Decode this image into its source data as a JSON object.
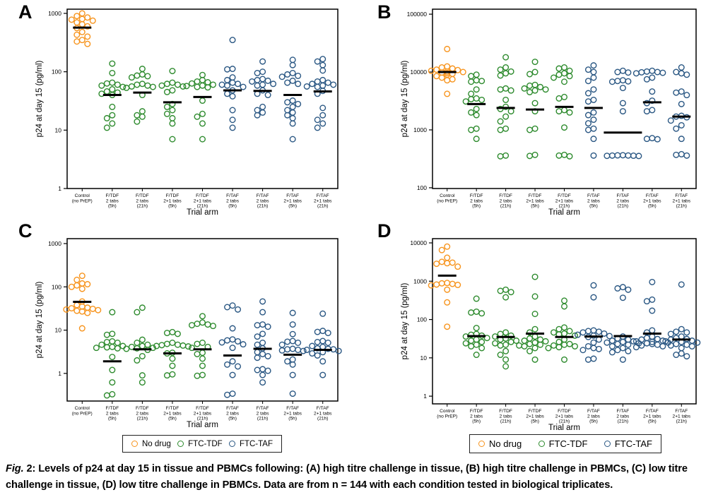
{
  "caption": {
    "label": "Fig.",
    "text": " 2: Levels of p24 at day 15 in tissue and PBMCs following: (A) high titre challenge in tissue, (B) high titre challenge in PBMCs, (C) low titre challenge in tissue, (D) low titre challenge in PBMCs. Data are from n = 144 with each condition tested in biological triplicates."
  },
  "series_colors": {
    "No drug": "#F7941D",
    "FTC-TDF": "#2E8B2E",
    "FTC-TAF": "#2A5783"
  },
  "legend": {
    "entries": [
      {
        "label": "No drug",
        "series": "No drug"
      },
      {
        "label": "FTC-TDF",
        "series": "FTC-TDF"
      },
      {
        "label": "FTC-TAF",
        "series": "FTC-TAF"
      }
    ]
  },
  "axes": {
    "xlabel": "Trial arm",
    "ylabel": "p24 at day 15 (pg/ml)"
  },
  "arms": [
    {
      "lines": [
        "Control",
        "(no PrEP)"
      ]
    },
    {
      "lines": [
        "F/TDF",
        "2 tabs",
        "(5h)"
      ]
    },
    {
      "lines": [
        "F/TDF",
        "2 tabs",
        "(21h)"
      ]
    },
    {
      "lines": [
        "F/TDF",
        "2+1 tabs",
        "(5h)"
      ]
    },
    {
      "lines": [
        "F/TDF",
        "2+1 tabs",
        "(21h)"
      ]
    },
    {
      "lines": [
        "F/TAF",
        "2 tabs",
        "(5h)"
      ]
    },
    {
      "lines": [
        "F/TAF",
        "2 tabs",
        "(21h)"
      ]
    },
    {
      "lines": [
        "F/TAF",
        "2+1 tabs",
        "(5h)"
      ]
    },
    {
      "lines": [
        "F/TAF",
        "2+1 tabs",
        "(21h)"
      ]
    }
  ],
  "chart_data": [
    {
      "panel": "A",
      "type": "scatter",
      "subtitle": "high titre challenge in tissue",
      "yscale": "log",
      "yticks": [
        1,
        10,
        100,
        1000
      ],
      "ylim": [
        1,
        1180
      ],
      "groups": [
        {
          "arm": "Control (no PrEP)",
          "series": "No drug",
          "median": 570,
          "values": [
            1000,
            900,
            850,
            800,
            780,
            750,
            700,
            650,
            600,
            560,
            480,
            430,
            400,
            350,
            330,
            300
          ]
        },
        {
          "arm": "F/TDF 2 tabs (5h)",
          "series": "FTC-TDF",
          "median": 40,
          "values": [
            138,
            95,
            65,
            63,
            60,
            58,
            55,
            50,
            46,
            44,
            42,
            40,
            25,
            18,
            16,
            13,
            11
          ]
        },
        {
          "arm": "F/TDF 2 tabs (21h)",
          "series": "FTC-TDF",
          "median": 44,
          "values": [
            112,
            90,
            86,
            84,
            80,
            62,
            60,
            58,
            56,
            55,
            53,
            40,
            21,
            18,
            17,
            14
          ]
        },
        {
          "arm": "F/TDF 2+1 tabs (5h)",
          "series": "FTC-TDF",
          "median": 30,
          "values": [
            103,
            65,
            62,
            60,
            58,
            56,
            48,
            45,
            28,
            25,
            22,
            19,
            16,
            13,
            7
          ]
        },
        {
          "arm": "F/TDF 2+1 tabs (21h)",
          "series": "FTC-TDF",
          "median": 37,
          "values": [
            88,
            72,
            68,
            66,
            63,
            60,
            58,
            57,
            55,
            54,
            32,
            19,
            17,
            13,
            7
          ]
        },
        {
          "arm": "F/TAF 2 tabs (5h)",
          "series": "FTC-TAF",
          "median": 48,
          "values": [
            350,
            112,
            110,
            80,
            72,
            65,
            62,
            60,
            58,
            55,
            48,
            42,
            38,
            22,
            15,
            11
          ]
        },
        {
          "arm": "F/TAF 2 tabs (21h)",
          "series": "FTC-TAF",
          "median": 47,
          "values": [
            150,
            100,
            95,
            75,
            72,
            70,
            68,
            62,
            60,
            58,
            48,
            42,
            40,
            25,
            22,
            20,
            18
          ]
        },
        {
          "arm": "F/TAF 2+1 tabs (5h)",
          "series": "FTC-TAF",
          "median": 40,
          "values": [
            160,
            130,
            95,
            90,
            85,
            82,
            70,
            65,
            62,
            32,
            30,
            28,
            25,
            22,
            20,
            18,
            16,
            13,
            7
          ]
        },
        {
          "arm": "F/TAF 2+1 tabs (21h)",
          "series": "FTC-TAF",
          "median": 46,
          "values": [
            165,
            150,
            130,
            105,
            72,
            68,
            65,
            62,
            60,
            58,
            56,
            55,
            47,
            42,
            24,
            18,
            15,
            13,
            11
          ]
        }
      ]
    },
    {
      "panel": "B",
      "type": "scatter",
      "subtitle": "high titre challenge in PBMCs",
      "yscale": "log",
      "yticks": [
        100,
        1000,
        10000,
        100000
      ],
      "ylim": [
        97,
        122000
      ],
      "groups": [
        {
          "arm": "Control (no PrEP)",
          "series": "No drug",
          "median": 10000,
          "values": [
            25000,
            12500,
            12000,
            11500,
            11000,
            10800,
            10500,
            10200,
            10000,
            9800,
            9600,
            9300,
            9000,
            8500,
            8000,
            7500,
            7200,
            4200
          ]
        },
        {
          "arm": "F/TDF 2 tabs (5h)",
          "series": "FTC-TDF",
          "median": 2800,
          "values": [
            9000,
            8500,
            7200,
            7000,
            6800,
            5000,
            4200,
            3500,
            3400,
            3300,
            3100,
            2300,
            2000,
            1800,
            1050,
            1000,
            700
          ]
        },
        {
          "arm": "F/TDF 2 tabs (21h)",
          "series": "FTC-TDF",
          "median": 2400,
          "values": [
            18000,
            12000,
            11000,
            10200,
            9500,
            8700,
            5200,
            5000,
            4800,
            3300,
            2500,
            2300,
            2100,
            1700,
            1400,
            1050,
            1000,
            360,
            350
          ]
        },
        {
          "arm": "F/TDF 2+1 tabs (5h)",
          "series": "FTC-TDF",
          "median": 2250,
          "values": [
            15000,
            10000,
            9200,
            6000,
            5800,
            5500,
            5200,
            5000,
            4800,
            4500,
            2900,
            2100,
            1050,
            1000,
            370,
            355
          ]
        },
        {
          "arm": "F/TDF 2+1 tabs (21h)",
          "series": "FTC-TDF",
          "median": 2500,
          "values": [
            12000,
            11500,
            10500,
            9500,
            9000,
            8500,
            8000,
            6800,
            3700,
            3500,
            2200,
            2100,
            2000,
            1100,
            370,
            360,
            350
          ]
        },
        {
          "arm": "F/TAF 2 tabs (5h)",
          "series": "FTC-TAF",
          "median": 2400,
          "values": [
            13000,
            11000,
            10000,
            8000,
            7000,
            5000,
            4300,
            3300,
            3100,
            2000,
            1800,
            1500,
            1300,
            1050,
            1000,
            700,
            360
          ]
        },
        {
          "arm": "F/TAF 2 tabs (21h)",
          "series": "FTC-TAF",
          "median": 900,
          "median_wide": true,
          "values": [
            10500,
            10000,
            9800,
            7200,
            7000,
            6900,
            6800,
            5300,
            2900,
            2100,
            365,
            363,
            361,
            360,
            358,
            356,
            354
          ]
        },
        {
          "arm": "F/TAF 2+1 tabs (5h)",
          "series": "FTC-TAF",
          "median": 3000,
          "values": [
            10500,
            10200,
            10000,
            9900,
            9700,
            9500,
            8000,
            7500,
            4600,
            3200,
            2900,
            2200,
            2100,
            720,
            700,
            690
          ]
        },
        {
          "arm": "F/TAF 2+1 tabs (21h)",
          "series": "FTC-TAF",
          "median": 1700,
          "values": [
            12000,
            10000,
            9500,
            9000,
            4600,
            4400,
            4000,
            2800,
            1750,
            1700,
            1650,
            1450,
            1200,
            1050,
            700,
            380,
            370,
            360
          ]
        }
      ]
    },
    {
      "panel": "C",
      "type": "scatter",
      "subtitle": "low titre challenge in tissue",
      "yscale": "log",
      "yticks": [
        1,
        10,
        100,
        1000
      ],
      "ylim": [
        0.23,
        1300
      ],
      "groups": [
        {
          "arm": "Control (no PrEP)",
          "series": "No drug",
          "median": 45,
          "values": [
            180,
            145,
            120,
            115,
            108,
            100,
            90,
            46,
            38,
            35,
            33,
            32,
            31,
            30,
            29,
            28,
            27,
            25,
            11
          ]
        },
        {
          "arm": "F/TDF 2 tabs (5h)",
          "series": "FTC-TDF",
          "median": 1.9,
          "values": [
            26,
            8.2,
            7.8,
            5.5,
            5.3,
            5.1,
            4.6,
            4.3,
            4.1,
            4.0,
            3.9,
            3.8,
            2.4,
            1.2,
            0.62,
            0.33,
            0.31
          ]
        },
        {
          "arm": "F/TDF 2 tabs (21h)",
          "series": "FTC-TDF",
          "median": 3.6,
          "values": [
            33,
            26,
            6,
            5.1,
            4.6,
            4.3,
            4.1,
            3.9,
            3.8,
            3.7,
            3.5,
            2.5,
            2.0,
            0.9,
            0.62
          ]
        },
        {
          "arm": "F/TDF 2+1 tabs (5h)",
          "series": "FTC-TDF",
          "median": 2.9,
          "values": [
            9.0,
            8.6,
            8.2,
            5.1,
            4.8,
            4.6,
            4.5,
            4.4,
            4.3,
            4.2,
            3.0,
            2.9,
            2.2,
            1.5,
            0.95,
            0.9
          ]
        },
        {
          "arm": "F/TDF 2+1 tabs (21h)",
          "series": "FTC-TDF",
          "median": 3.6,
          "values": [
            21,
            15,
            14,
            13.5,
            13,
            12.5,
            5.1,
            4.8,
            4.1,
            3.9,
            3.0,
            2.8,
            2.2,
            1.5,
            0.92,
            0.88
          ]
        },
        {
          "arm": "F/TAF 2 tabs (5h)",
          "series": "FTC-TAF",
          "median": 2.6,
          "values": [
            37,
            34,
            30,
            11,
            6.1,
            5.8,
            5.5,
            5.2,
            4.7,
            3.9,
            1.9,
            1.6,
            1.45,
            0.92,
            0.34,
            0.32
          ]
        },
        {
          "arm": "F/TAF 2 tabs (21h)",
          "series": "FTC-TAF",
          "median": 3.7,
          "values": [
            46,
            26,
            13.5,
            13,
            12,
            8.2,
            7.1,
            5.1,
            4.6,
            3.8,
            3.1,
            2.8,
            2.5,
            2.3,
            1.25,
            1.2,
            1.15,
            0.92,
            0.62
          ]
        },
        {
          "arm": "F/TAF 2+1 tabs (5h)",
          "series": "FTC-TAF",
          "median": 2.7,
          "values": [
            25,
            13.5,
            8.1,
            5.6,
            5.4,
            5.1,
            4.6,
            3.7,
            3.6,
            3.5,
            3.4,
            3.3,
            2.1,
            1.9,
            1.6,
            0.92,
            0.34
          ]
        },
        {
          "arm": "F/TAF 2+1 tabs (21h)",
          "series": "FTC-TAF",
          "median": 3.5,
          "values": [
            24,
            9.6,
            9.1,
            8.6,
            5.6,
            5.3,
            5.1,
            4.3,
            4.1,
            3.8,
            3.7,
            3.6,
            3.5,
            3.3,
            3.1,
            2.9,
            2.6,
            1.9,
            0.92
          ]
        }
      ]
    },
    {
      "panel": "D",
      "type": "scatter",
      "subtitle": "low titre challenge in PBMCs",
      "yscale": "log",
      "yticks": [
        1,
        10,
        100,
        1000,
        10000
      ],
      "ylim": [
        0.63,
        12900
      ],
      "groups": [
        {
          "arm": "Control (no PrEP)",
          "series": "No drug",
          "median": 1400,
          "values": [
            8000,
            6500,
            4100,
            3200,
            3050,
            2950,
            2850,
            2400,
            900,
            880,
            850,
            820,
            800,
            780,
            600,
            280,
            65
          ]
        },
        {
          "arm": "F/TDF 2 tabs (5h)",
          "series": "FTC-TDF",
          "median": 37,
          "values": [
            350,
            160,
            152,
            145,
            60,
            42,
            40,
            38,
            36,
            33,
            30,
            28,
            26,
            24,
            22,
            20,
            18,
            12
          ]
        },
        {
          "arm": "F/TDF 2 tabs (21h)",
          "series": "FTC-TDF",
          "median": 35,
          "values": [
            600,
            560,
            520,
            380,
            46,
            42,
            38,
            36,
            32,
            30,
            28,
            26,
            24,
            22,
            21,
            15,
            12,
            9,
            6
          ]
        },
        {
          "arm": "F/TDF 2+1 tabs (5h)",
          "series": "FTC-TDF",
          "median": 43,
          "values": [
            1300,
            400,
            140,
            56,
            46,
            36,
            32,
            30,
            28,
            27,
            25,
            23,
            22,
            21,
            20,
            18,
            15,
            9
          ]
        },
        {
          "arm": "F/TDF 2+1 tabs (21h)",
          "series": "FTC-TDF",
          "median": 35,
          "values": [
            310,
            220,
            62,
            56,
            50,
            46,
            43,
            41,
            38,
            30,
            26,
            23,
            22,
            21,
            20,
            19,
            18,
            9
          ]
        },
        {
          "arm": "F/TAF 2 tabs (5h)",
          "series": "FTC-TAF",
          "median": 36,
          "values": [
            780,
            380,
            52,
            50,
            48,
            46,
            43,
            40,
            38,
            37,
            35,
            30,
            25,
            20,
            18,
            17,
            16,
            9.5,
            9
          ]
        },
        {
          "arm": "F/TAF 2 tabs (21h)",
          "series": "FTC-TAF",
          "median": 37,
          "values": [
            700,
            650,
            600,
            370,
            36,
            32,
            30,
            28,
            27,
            26,
            25,
            24,
            23,
            22,
            20,
            18,
            16,
            15,
            14,
            9
          ]
        },
        {
          "arm": "F/TAF 2+1 tabs (5h)",
          "series": "FTC-TAF",
          "median": 43,
          "values": [
            950,
            330,
            300,
            170,
            52,
            46,
            36,
            33,
            31,
            30,
            28,
            27,
            26,
            25,
            24,
            23,
            22,
            21,
            20,
            19
          ]
        },
        {
          "arm": "F/TAF 2+1 tabs (21h)",
          "series": "FTC-TAF",
          "median": 30,
          "values": [
            820,
            56,
            48,
            46,
            42,
            36,
            33,
            31,
            30,
            28,
            27,
            26,
            25,
            23,
            22,
            21,
            20,
            18,
            13,
            12,
            11
          ]
        }
      ]
    }
  ]
}
